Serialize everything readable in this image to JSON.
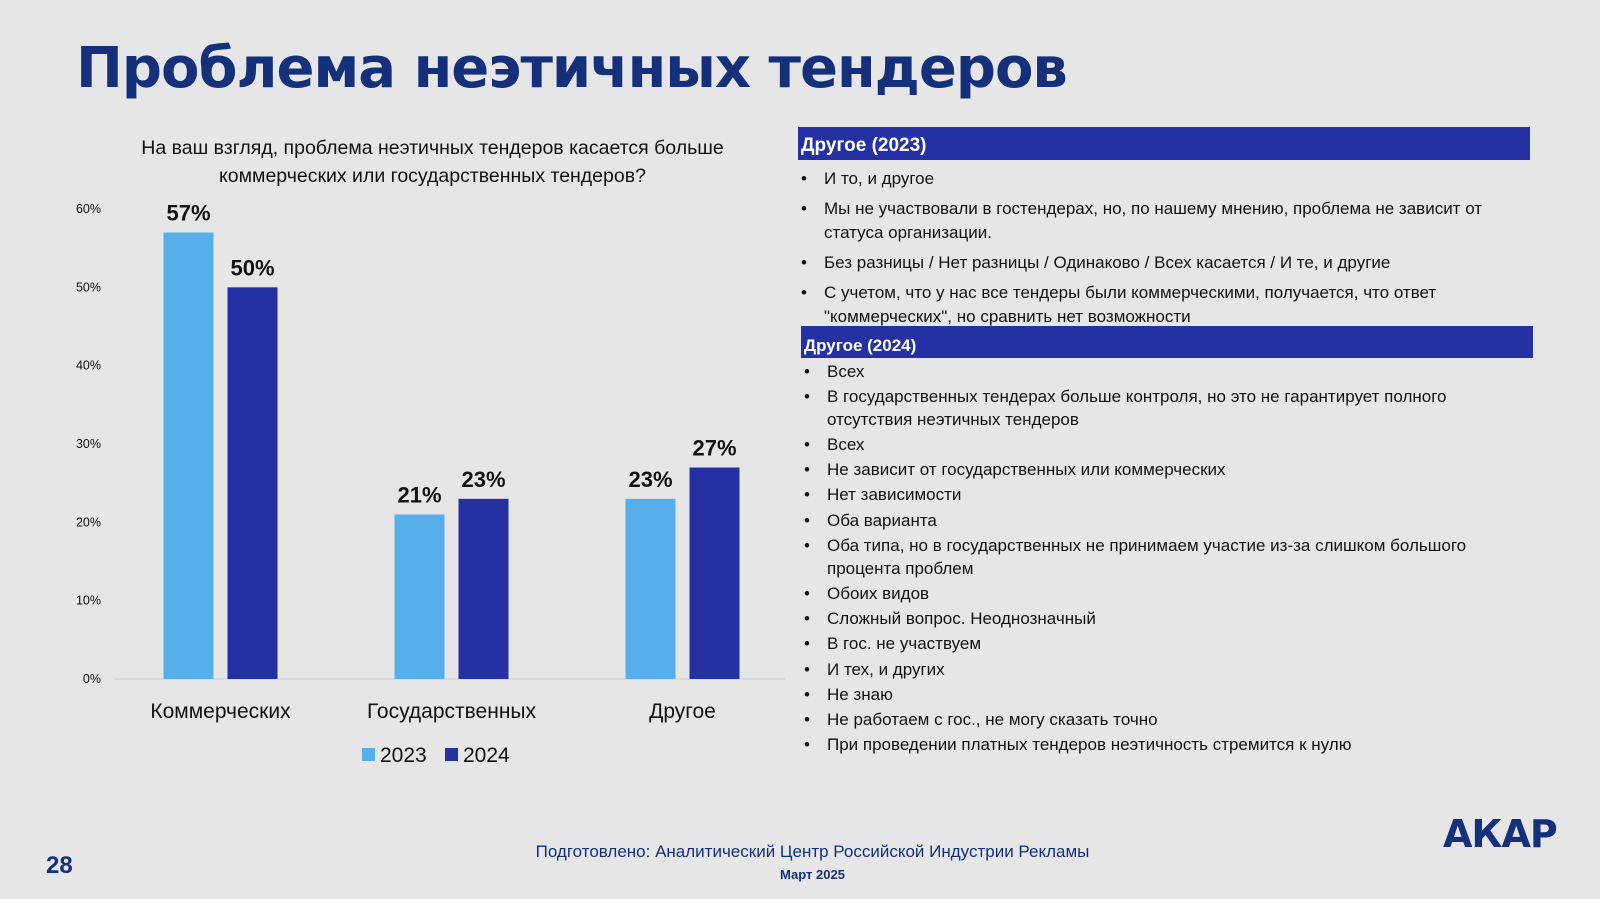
{
  "slide": {
    "title": "Проблема неэтичных тендеров",
    "page_number": "28",
    "footer_source": "Подготовлено: Аналитический Центр Российской Индустрии Рекламы",
    "footer_date": "Март 2025",
    "logo": "АКАР"
  },
  "chart_data": {
    "type": "bar",
    "title": "На ваш взгляд, проблема неэтичных тендеров касается больше коммерческих или государственных тендеров?",
    "categories": [
      "Коммерческих",
      "Государственных",
      "Другое"
    ],
    "series": [
      {
        "name": "2023",
        "color": "#56aeea",
        "values": [
          57,
          21,
          23
        ],
        "labels": [
          "57%",
          "21%",
          "23%"
        ]
      },
      {
        "name": "2024",
        "color": "#2531a3",
        "values": [
          50,
          23,
          27
        ],
        "labels": [
          "50%",
          "23%",
          "27%"
        ]
      }
    ],
    "value_values_unit": "%",
    "ylim": [
      0,
      60
    ],
    "yticks": [
      "0%",
      "10%",
      "20%",
      "30%",
      "40%",
      "50%",
      "60%"
    ],
    "legend_position": "bottom",
    "grid": false
  },
  "panels": {
    "other_2023": {
      "title": "Другое (2023)",
      "items": [
        "И то, и другое",
        "Мы не участвовали в гостендерах, но, по нашему мнению, проблема не зависит от статуса организации.",
        "Без разницы / Нет разницы / Одинаково / Всех касается / И те, и другие",
        "С учетом, что у нас все тендеры были коммерческими, получается, что ответ \"коммерческих\", но сравнить нет возможности"
      ]
    },
    "other_2024": {
      "title": "Другое (2024)",
      "items": [
        "Всех",
        "В государственных тендерах больше контроля, но это не гарантирует полного отсутствия неэтичных тендеров",
        "Всех",
        "Не зависит от государственных или коммерческих",
        "Нет зависимости",
        "Оба варианта",
        "Оба типа, но в государственных не принимаем участие из-за слишком большого процента проблем",
        "Обоих видов",
        "Сложный вопрос. Неоднозначный",
        "В гос. не участвуем",
        "И тех, и других",
        "Не знаю",
        "Не работаем с гос., не могу сказать точно",
        "При проведении платных тендеров неэтичность стремится к нулю"
      ]
    }
  }
}
